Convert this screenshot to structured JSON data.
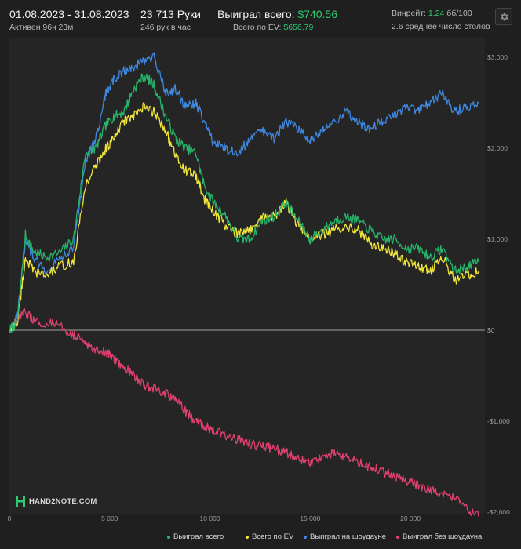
{
  "header": {
    "date_range": "01.08.2023 - 31.08.2023",
    "active": "Активен 96ч 23м",
    "hands": "23 713 Руки",
    "hands_per_hour": "246 рук в час",
    "won_total_label": "Выиграл всего:",
    "won_total_value": "$740.56",
    "won_ev_label": "Всего по EV:",
    "won_ev_value": "$656.79",
    "winrate_label": "Винрейт:",
    "winrate_value": "1.24",
    "winrate_unit": "бб/100",
    "avg_tables": "2.6 среднее число столов"
  },
  "logo": {
    "text": "HAND2NOTE.COM"
  },
  "icons": {
    "settings": "gear-icon",
    "logo": "hand2note-logo-icon"
  },
  "colors": {
    "background": "#1f1f1f",
    "total": "#27b46a",
    "ev": "#f0e53a",
    "showdown": "#3f88e0",
    "non_showdown": "#e0406f",
    "accent_green": "#2ecc71"
  },
  "chart_data": {
    "type": "line",
    "title": "",
    "xlabel": "",
    "ylabel": "",
    "xlim": [
      0,
      23713
    ],
    "ylim": [
      -2000,
      3000
    ],
    "x_ticks": [
      0,
      5000,
      10000,
      15000,
      20000
    ],
    "x_tick_labels": [
      "0",
      "5 000",
      "10 000",
      "15 000",
      "20 000"
    ],
    "y_ticks": [
      3000,
      2000,
      1000,
      0,
      -1000,
      -2000
    ],
    "y_tick_labels": [
      "$3,000",
      "$2,000",
      "$1,000",
      "$0",
      "-$1,000",
      "-$2,000"
    ],
    "grid": "horizontal zero line",
    "legend_position": "bottom-right",
    "x": [
      0,
      400,
      800,
      1200,
      1800,
      2500,
      3200,
      3800,
      4300,
      4800,
      5200,
      5700,
      6200,
      6700,
      7200,
      7800,
      8300,
      8800,
      9300,
      9700,
      10200,
      10800,
      11400,
      12000,
      12600,
      13200,
      13800,
      14400,
      15000,
      15600,
      16200,
      16800,
      17400,
      18000,
      18600,
      19200,
      19800,
      20400,
      21000,
      21600,
      22200,
      22800,
      23400
    ],
    "series": [
      {
        "name": "Выиграл всего",
        "color": "#27b46a",
        "values": [
          0,
          100,
          1050,
          870,
          800,
          850,
          1000,
          1950,
          2000,
          2250,
          2350,
          2400,
          2650,
          2800,
          2700,
          2350,
          2100,
          2000,
          1950,
          1600,
          1400,
          1250,
          1000,
          1000,
          1200,
          1250,
          1400,
          1200,
          1000,
          1100,
          1200,
          1250,
          1200,
          1100,
          1000,
          1000,
          900,
          900,
          800,
          900,
          650,
          700,
          750
        ]
      },
      {
        "name": "Всего по EV",
        "color": "#f0e53a",
        "values": [
          0,
          80,
          800,
          650,
          600,
          700,
          750,
          1600,
          1800,
          2000,
          2100,
          2300,
          2350,
          2450,
          2400,
          2200,
          1900,
          1750,
          1700,
          1450,
          1300,
          1150,
          1050,
          1100,
          1250,
          1250,
          1400,
          1150,
          1000,
          1050,
          1100,
          1150,
          1100,
          950,
          900,
          850,
          750,
          700,
          650,
          800,
          550,
          600,
          650
        ]
      },
      {
        "name": "Выиграл на шоудауне",
        "color": "#3f88e0",
        "values": [
          0,
          150,
          1000,
          800,
          650,
          800,
          900,
          1850,
          2100,
          2600,
          2750,
          2850,
          2900,
          2950,
          3000,
          2600,
          2650,
          2450,
          2500,
          2300,
          2050,
          2000,
          1950,
          2100,
          2200,
          2100,
          2300,
          2200,
          2100,
          2200,
          2300,
          2400,
          2300,
          2200,
          2300,
          2350,
          2450,
          2400,
          2500,
          2600,
          2400,
          2450,
          2500
        ]
      },
      {
        "name": "Выиграл без шоудауна",
        "color": "#e0406f",
        "values": [
          0,
          100,
          200,
          100,
          80,
          50,
          -50,
          -150,
          -200,
          -250,
          -300,
          -400,
          -500,
          -600,
          -650,
          -700,
          -750,
          -900,
          -1000,
          -1050,
          -1100,
          -1150,
          -1200,
          -1250,
          -1280,
          -1300,
          -1350,
          -1400,
          -1450,
          -1400,
          -1350,
          -1400,
          -1450,
          -1500,
          -1550,
          -1600,
          -1650,
          -1700,
          -1750,
          -1800,
          -1850,
          -1950,
          -2050
        ]
      }
    ]
  }
}
